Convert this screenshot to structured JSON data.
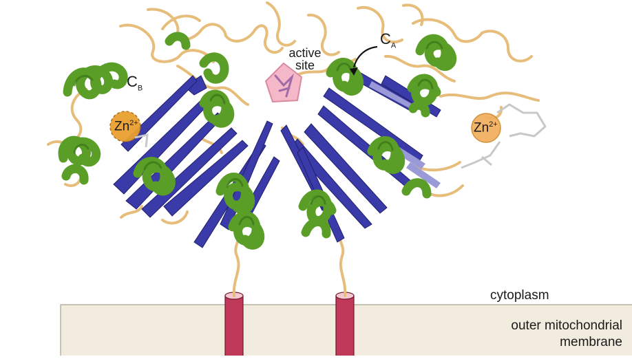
{
  "labels": {
    "active_site_line1": "active",
    "active_site_line2": "site",
    "chain_a": "C",
    "chain_a_sub": "A",
    "chain_b": "C",
    "chain_b_sub": "B",
    "zinc_left": "Zn",
    "zinc_right": "Zn",
    "zinc_charge": "2+",
    "cytoplasm": "cytoplasm",
    "membrane_line1": "outer mitochondrial",
    "membrane_line2": "membrane"
  },
  "colors": {
    "helix": "#5a9e28",
    "strand": "#3a3aa8",
    "loop": "#e6bd7a",
    "membrane": "#f2ecdf",
    "anchor": "#c0385a",
    "active_site": "#f5b8c8",
    "zinc": "#e8a030"
  }
}
